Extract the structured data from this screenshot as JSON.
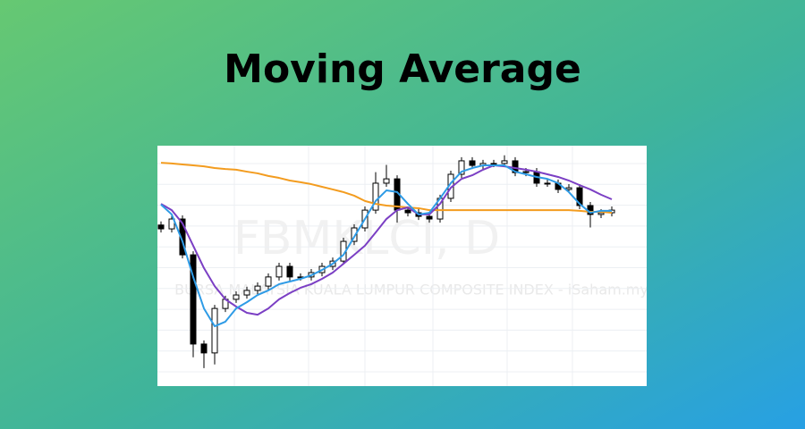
{
  "chart_data": {
    "type": "candlestick",
    "title": "Moving Average",
    "watermark": "FBMKLCI, D",
    "watermark_subtitle": "BURSA MALAYSIA KUALA LUMPUR COMPOSITE INDEX - iSaham.my",
    "categories": [
      null,
      null,
      null,
      null,
      null,
      null,
      null,
      null,
      null,
      null,
      null,
      null,
      null,
      null,
      null,
      null,
      null,
      null,
      null,
      null,
      null,
      null,
      null,
      null,
      null,
      null,
      null,
      null,
      null,
      null,
      null,
      null,
      null,
      null,
      null,
      null,
      null,
      null,
      null,
      null,
      null,
      null,
      null
    ],
    "open": [
      67.0,
      65.4,
      69.5,
      54.6,
      17.5,
      13.8,
      32.3,
      36.1,
      37.9,
      39.8,
      41.6,
      45.4,
      49.8,
      45.4,
      45.4,
      47.2,
      49.8,
      52.0,
      60.2,
      65.8,
      73.2,
      84.4,
      86.2,
      73.2,
      72.1,
      70.6,
      69.5,
      78.1,
      88.1,
      93.7,
      91.8,
      92.6,
      92.6,
      93.7,
      88.8,
      89.2,
      84.4,
      84.4,
      81.8,
      82.5,
      75.1,
      71.4,
      72.1
    ],
    "high": [
      68.5,
      71.0,
      71.0,
      56.1,
      19.0,
      33.8,
      37.6,
      39.4,
      41.3,
      43.1,
      46.9,
      51.3,
      51.3,
      46.9,
      48.7,
      51.3,
      53.5,
      61.7,
      67.3,
      74.7,
      89.0,
      92.0,
      87.7,
      74.7,
      73.6,
      72.1,
      79.6,
      89.6,
      95.2,
      95.2,
      94.1,
      94.1,
      96.0,
      95.2,
      90.7,
      90.7,
      85.9,
      85.9,
      84.0,
      84.0,
      76.6,
      73.6,
      74.7
    ],
    "low": [
      63.9,
      63.9,
      53.1,
      12.0,
      7.5,
      9.0,
      30.8,
      34.6,
      36.4,
      38.3,
      40.1,
      43.9,
      43.9,
      43.9,
      43.9,
      45.7,
      48.3,
      50.5,
      58.7,
      64.3,
      71.7,
      82.9,
      68.0,
      70.6,
      69.1,
      68.0,
      68.0,
      76.6,
      86.6,
      90.3,
      90.3,
      91.1,
      91.1,
      87.3,
      87.3,
      82.9,
      82.9,
      80.3,
      80.3,
      73.6,
      66.0,
      69.9,
      70.6
    ],
    "close": [
      65.4,
      69.5,
      54.6,
      17.5,
      13.8,
      32.3,
      36.1,
      37.9,
      39.8,
      41.6,
      45.4,
      49.8,
      45.4,
      45.4,
      47.2,
      49.8,
      52.0,
      60.2,
      65.8,
      73.2,
      84.4,
      86.2,
      73.2,
      72.1,
      70.6,
      69.5,
      78.1,
      88.1,
      93.7,
      91.8,
      92.6,
      92.6,
      93.7,
      88.8,
      89.2,
      84.4,
      84.4,
      81.8,
      82.5,
      75.1,
      71.4,
      72.1,
      73.2
    ],
    "up_color": "#ffffff",
    "down_color": "#000000",
    "series": [
      {
        "color": "#f39c1f",
        "values": [
          92.9,
          92.6,
          92.2,
          91.8,
          91.4,
          90.7,
          90.3,
          90.0,
          89.2,
          88.5,
          87.4,
          86.6,
          85.5,
          84.8,
          84.0,
          82.9,
          81.8,
          80.7,
          79.2,
          77.0,
          75.8,
          75.1,
          74.7,
          74.3,
          74.0,
          73.2,
          73.2,
          73.2,
          73.2,
          73.2,
          73.2,
          73.2,
          73.2,
          73.2,
          73.2,
          73.2,
          73.2,
          73.2,
          73.2,
          72.9,
          72.5,
          72.5,
          72.1
        ]
      },
      {
        "color": "#7b3fc4",
        "values": [
          75.8,
          73.2,
          67.7,
          58.4,
          49.1,
          41.6,
          36.1,
          33.1,
          30.5,
          29.7,
          32.3,
          36.1,
          38.7,
          40.9,
          42.4,
          44.6,
          47.2,
          50.9,
          54.6,
          58.4,
          63.9,
          69.5,
          73.2,
          74.3,
          71.4,
          71.4,
          75.8,
          82.5,
          86.2,
          87.7,
          90.0,
          91.8,
          91.4,
          90.7,
          90.0,
          89.2,
          88.1,
          87.0,
          85.5,
          83.6,
          81.8,
          79.6,
          77.7
        ]
      },
      {
        "color": "#2e9be6",
        "values": [
          75.5,
          71.4,
          60.2,
          45.4,
          32.3,
          24.9,
          26.8,
          32.3,
          34.9,
          37.9,
          39.8,
          42.4,
          43.5,
          44.6,
          46.1,
          48.3,
          50.9,
          54.6,
          62.1,
          69.5,
          77.0,
          81.4,
          80.7,
          75.8,
          71.4,
          72.1,
          78.1,
          84.4,
          89.2,
          90.7,
          91.8,
          91.8,
          91.8,
          89.2,
          88.1,
          87.0,
          86.2,
          84.4,
          80.7,
          75.8,
          72.1,
          72.9,
          72.9
        ]
      }
    ],
    "ylim": [
      0,
      100
    ],
    "grid": true
  }
}
